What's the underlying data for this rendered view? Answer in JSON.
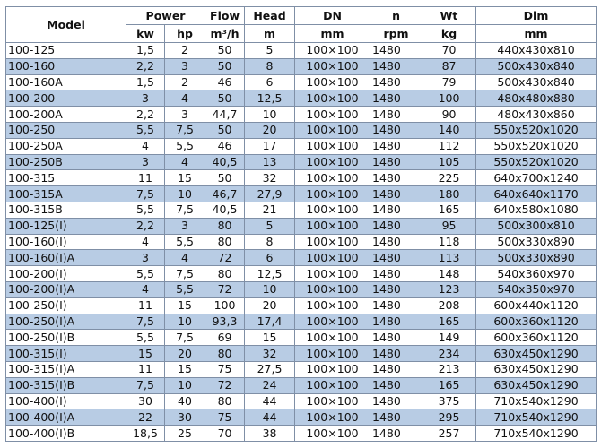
{
  "header": {
    "model": "Model",
    "power": "Power",
    "flow": "Flow",
    "head": "Head",
    "dn": "DN",
    "n": "n",
    "wt": "Wt",
    "dim": "Dim",
    "units": {
      "kw": "kw",
      "hp": "hp",
      "flow": "m³/h",
      "head": "m",
      "dn": "mm",
      "n": "rpm",
      "wt": "kg",
      "dim": "mm"
    }
  },
  "colors": {
    "alt_row": "#b8cce4",
    "border": "#7f8fa6"
  },
  "rows": [
    [
      "100-125",
      "1,5",
      "2",
      "50",
      "5",
      "100×100",
      "1480",
      "70",
      "440x430x810"
    ],
    [
      "100-160",
      "2,2",
      "3",
      "50",
      "8",
      "100×100",
      "1480",
      "87",
      "500x430x840"
    ],
    [
      "100-160A",
      "1,5",
      "2",
      "46",
      "6",
      "100×100",
      "1480",
      "79",
      "500x430x840"
    ],
    [
      "100-200",
      "3",
      "4",
      "50",
      "12,5",
      "100×100",
      "1480",
      "100",
      "480x480x880"
    ],
    [
      "100-200A",
      "2,2",
      "3",
      "44,7",
      "10",
      "100×100",
      "1480",
      "90",
      "480x430x860"
    ],
    [
      "100-250",
      "5,5",
      "7,5",
      "50",
      "20",
      "100×100",
      "1480",
      "140",
      "550x520x1020"
    ],
    [
      "100-250A",
      "4",
      "5,5",
      "46",
      "17",
      "100×100",
      "1480",
      "112",
      "550x520x1020"
    ],
    [
      "100-250B",
      "3",
      "4",
      "40,5",
      "13",
      "100×100",
      "1480",
      "105",
      "550x520x1020"
    ],
    [
      "100-315",
      "11",
      "15",
      "50",
      "32",
      "100×100",
      "1480",
      "225",
      "640x700x1240"
    ],
    [
      "100-315A",
      "7,5",
      "10",
      "46,7",
      "27,9",
      "100×100",
      "1480",
      "180",
      "640x640x1170"
    ],
    [
      "100-315B",
      "5,5",
      "7,5",
      "40,5",
      "21",
      "100×100",
      "1480",
      "165",
      "640x580x1080"
    ],
    [
      "100-125(I)",
      "2,2",
      "3",
      "80",
      "5",
      "100×100",
      "1480",
      "95",
      "500x300x810"
    ],
    [
      "100-160(I)",
      "4",
      "5,5",
      "80",
      "8",
      "100×100",
      "1480",
      "118",
      "500x330x890"
    ],
    [
      "100-160(I)A",
      "3",
      "4",
      "72",
      "6",
      "100×100",
      "1480",
      "113",
      "500x330x890"
    ],
    [
      "100-200(I)",
      "5,5",
      "7,5",
      "80",
      "12,5",
      "100×100",
      "1480",
      "148",
      "540x360x970"
    ],
    [
      "100-200(I)A",
      "4",
      "5,5",
      "72",
      "10",
      "100×100",
      "1480",
      "123",
      "540x350x970"
    ],
    [
      "100-250(I)",
      "11",
      "15",
      "100",
      "20",
      "100×100",
      "1480",
      "208",
      "600x440x1120"
    ],
    [
      "100-250(I)A",
      "7,5",
      "10",
      "93,3",
      "17,4",
      "100×100",
      "1480",
      "165",
      "600x360x1120"
    ],
    [
      "100-250(I)B",
      "5,5",
      "7,5",
      "69",
      "15",
      "100×100",
      "1480",
      "149",
      "600x360x1120"
    ],
    [
      "100-315(I)",
      "15",
      "20",
      "80",
      "32",
      "100×100",
      "1480",
      "234",
      "630x450x1290"
    ],
    [
      "100-315(I)A",
      "11",
      "15",
      "75",
      "27,5",
      "100×100",
      "1480",
      "213",
      "630x450x1290"
    ],
    [
      "100-315(I)B",
      "7,5",
      "10",
      "72",
      "24",
      "100×100",
      "1480",
      "165",
      "630x450x1290"
    ],
    [
      "100-400(I)",
      "30",
      "40",
      "80",
      "44",
      "100×100",
      "1480",
      "375",
      "710x540x1290"
    ],
    [
      "100-400(I)A",
      "22",
      "30",
      "75",
      "44",
      "100×100",
      "1480",
      "295",
      "710x540x1290"
    ],
    [
      "100-400(I)B",
      "18,5",
      "25",
      "70",
      "38",
      "100×100",
      "1480",
      "257",
      "710x540x1290"
    ]
  ]
}
